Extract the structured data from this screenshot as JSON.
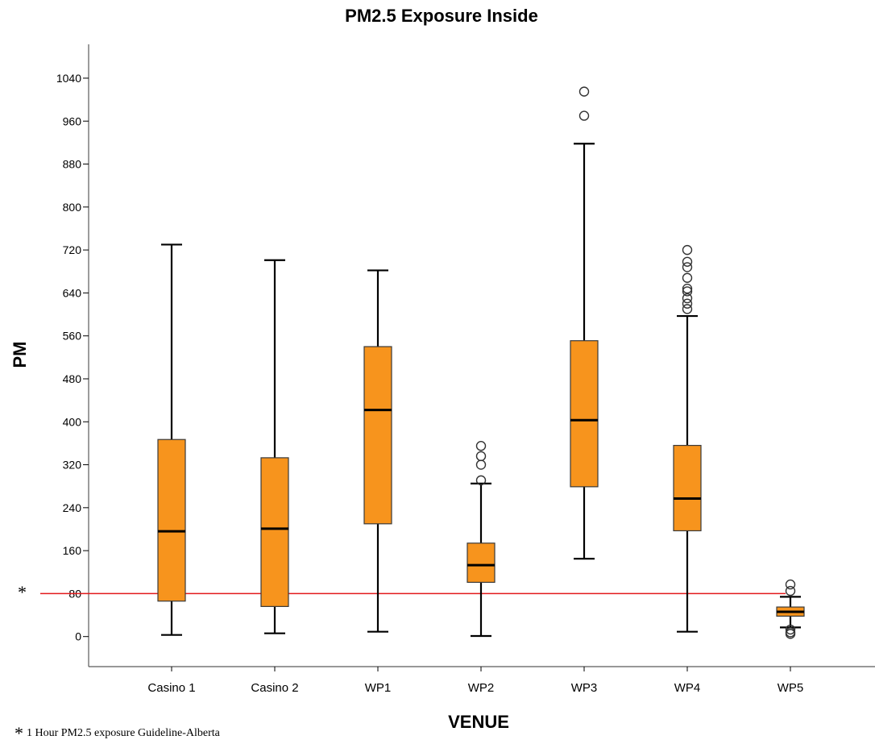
{
  "chart_data": {
    "type": "boxplot",
    "title": "PM2.5 Exposure Inside",
    "xlabel": "VENUE",
    "ylabel": "PM",
    "yticks": [
      0,
      80,
      160,
      240,
      320,
      400,
      480,
      560,
      640,
      720,
      800,
      880,
      960,
      1040
    ],
    "ylim": [
      -56,
      1103
    ],
    "grid": false,
    "box_color": "#f7941d",
    "reference_line": {
      "value": 80,
      "color": "#e31a1c",
      "marker": "*"
    },
    "boxes": [
      {
        "category": "Casino 1",
        "whisker_low": 3,
        "q1": 66,
        "median": 196,
        "q3": 367,
        "whisker_high": 730,
        "outliers": []
      },
      {
        "category": "Casino 2",
        "whisker_low": 6,
        "q1": 56,
        "median": 201,
        "q3": 333,
        "whisker_high": 701,
        "outliers": []
      },
      {
        "category": "WP1",
        "whisker_low": 9,
        "q1": 210,
        "median": 422,
        "q3": 540,
        "whisker_high": 682,
        "outliers": []
      },
      {
        "category": "WP2",
        "whisker_low": 1,
        "q1": 101,
        "median": 133,
        "q3": 174,
        "whisker_high": 285,
        "outliers": [
          291,
          320,
          336,
          355
        ]
      },
      {
        "category": "WP3",
        "whisker_low": 145,
        "q1": 279,
        "median": 403,
        "q3": 551,
        "whisker_high": 918,
        "outliers": [
          970,
          1015
        ]
      },
      {
        "category": "WP4",
        "whisker_low": 9,
        "q1": 197,
        "median": 257,
        "q3": 356,
        "whisker_high": 597,
        "outliers": [
          610,
          620,
          630,
          643,
          648,
          668,
          688,
          698,
          720
        ]
      },
      {
        "category": "WP5",
        "whisker_low": 17,
        "q1": 38,
        "median": 46,
        "q3": 55,
        "whisker_high": 74,
        "outliers": [
          5,
          8,
          13,
          85,
          97
        ]
      }
    ]
  },
  "footnote": {
    "marker": "*",
    "text": "1 Hour PM2.5 exposure Guideline-Alberta"
  }
}
